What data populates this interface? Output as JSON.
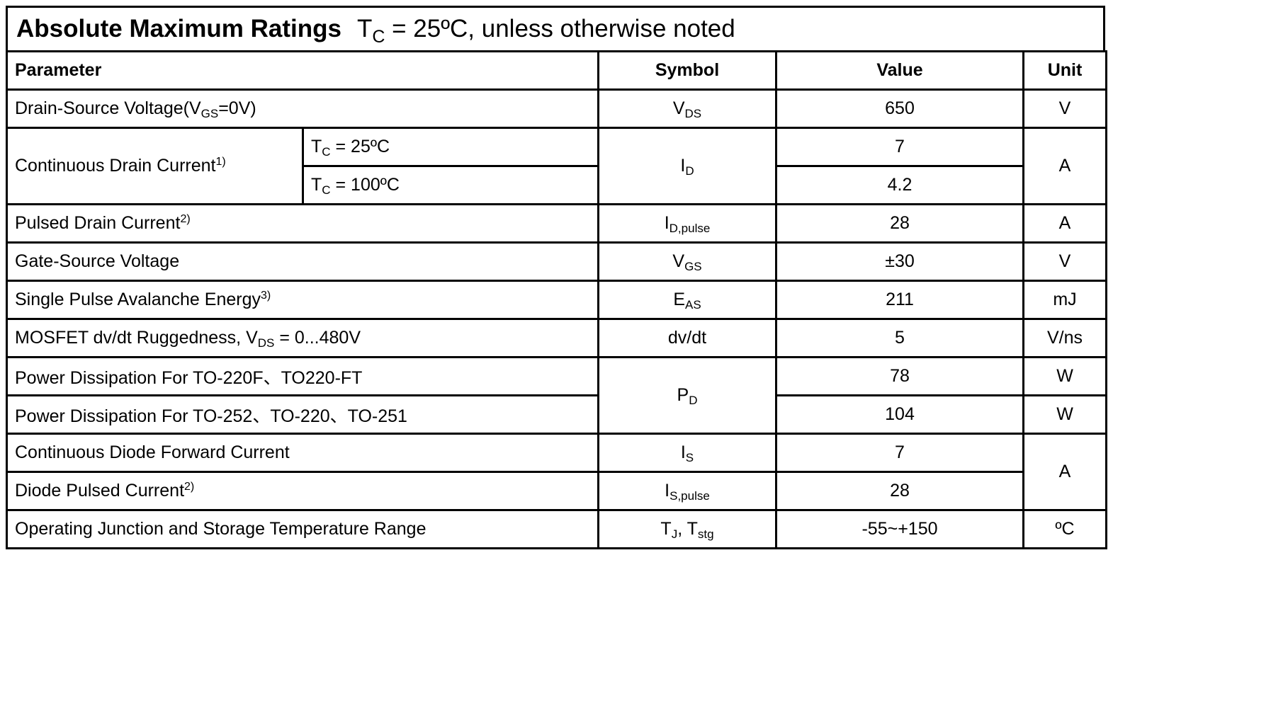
{
  "title": {
    "main": "Absolute Maximum Ratings",
    "cond_prefix": "T",
    "cond_sub": "C",
    "cond_suffix": " = 25ºC, unless otherwise noted"
  },
  "headers": {
    "parameter": "Parameter",
    "symbol": "Symbol",
    "value": "Value",
    "unit": "Unit"
  },
  "rows": {
    "r1": {
      "param": "Drain-Source Voltage(V",
      "param_sub": "GS",
      "param_tail": "=0V)",
      "sym": "V",
      "sym_sub": "DS",
      "value": "650",
      "unit": "V"
    },
    "r2": {
      "param": "Continuous Drain Current",
      "param_sup": "1)",
      "cond1_pre": "T",
      "cond1_sub": "C",
      "cond1_tail": " = 25ºC",
      "cond2_pre": "T",
      "cond2_sub": "C",
      "cond2_tail": " = 100ºC",
      "sym": "I",
      "sym_sub": "D",
      "value1": "7",
      "value2": "4.2",
      "unit": "A"
    },
    "r3": {
      "param": "Pulsed Drain Current",
      "param_sup": "2)",
      "sym": "I",
      "sym_sub": "D,pulse",
      "value": "28",
      "unit": "A"
    },
    "r4": {
      "param": "Gate-Source Voltage",
      "sym": "V",
      "sym_sub": "GS",
      "value": "±30",
      "unit": "V"
    },
    "r5": {
      "param": "Single Pulse Avalanche Energy",
      "param_sup": "3)",
      "sym": "E",
      "sym_sub": "AS",
      "value": "211",
      "unit": "mJ"
    },
    "r6": {
      "param": "MOSFET dv/dt Ruggedness, V",
      "param_sub": "DS",
      "param_tail": " = 0...480V",
      "sym": "dv/dt",
      "value": "5",
      "unit": "V/ns"
    },
    "r7": {
      "param": "Power Dissipation For TO-220F、TO220-FT",
      "sym": "P",
      "sym_sub": "D",
      "value": "78",
      "unit": "W"
    },
    "r8": {
      "param": "Power Dissipation For TO-252、TO-220、TO-251",
      "value": "104",
      "unit": "W"
    },
    "r9": {
      "param": "Continuous Diode Forward Current",
      "sym": "I",
      "sym_sub": "S",
      "value": "7",
      "unit": "A"
    },
    "r10": {
      "param": "Diode Pulsed Current",
      "param_sup": "2)",
      "sym": "I",
      "sym_sub": "S,pulse",
      "value": "28"
    },
    "r11": {
      "param": "Operating Junction and Storage Temperature Range",
      "sym": "T",
      "sym_sub": "J",
      "sym_mid": ", T",
      "sym_sub2": "stg",
      "value": "-55~+150",
      "unit": "ºC"
    }
  }
}
